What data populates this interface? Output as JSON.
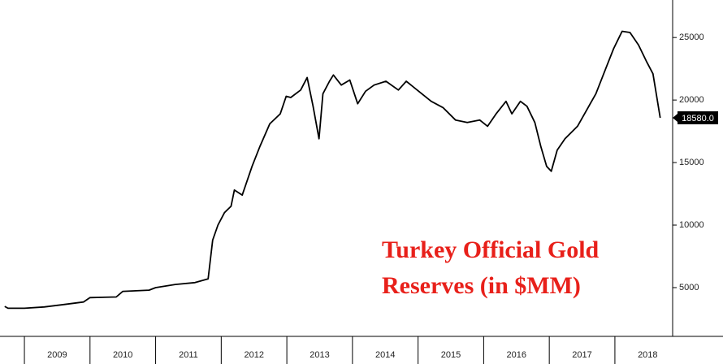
{
  "chart_data": {
    "type": "line",
    "annotation": [
      "Turkey Official Gold",
      "Reserves (in $MM)"
    ],
    "x": [
      2008.7,
      2008.75,
      2009.0,
      2009.3,
      2009.6,
      2009.9,
      2010.0,
      2010.4,
      2010.5,
      2010.9,
      2011.0,
      2011.3,
      2011.6,
      2011.8,
      2011.87,
      2011.95,
      2012.05,
      2012.15,
      2012.2,
      2012.32,
      2012.47,
      2012.59,
      2012.74,
      2012.9,
      2012.99,
      2013.06,
      2013.21,
      2013.31,
      2013.4,
      2013.49,
      2013.55,
      2013.65,
      2013.71,
      2013.83,
      2013.96,
      2014.08,
      2014.2,
      2014.33,
      2014.51,
      2014.7,
      2014.82,
      2015.01,
      2015.2,
      2015.38,
      2015.57,
      2015.75,
      2015.94,
      2016.06,
      2016.19,
      2016.34,
      2016.43,
      2016.56,
      2016.66,
      2016.78,
      2016.87,
      2016.96,
      2017.03,
      2017.12,
      2017.24,
      2017.43,
      2017.57,
      2017.71,
      2017.86,
      2017.98,
      2018.11,
      2018.23,
      2018.36,
      2018.48,
      2018.58,
      2018.64,
      2018.69
    ],
    "series": [
      {
        "color": "#000000",
        "values": [
          3500,
          3350,
          3350,
          3450,
          3650,
          3850,
          4200,
          4250,
          4700,
          4800,
          5000,
          5250,
          5400,
          5700,
          8800,
          10000,
          11000,
          11500,
          12800,
          12400,
          14700,
          16300,
          18100,
          18900,
          20300,
          20200,
          20800,
          21800,
          19500,
          16900,
          20500,
          21500,
          22000,
          21200,
          21600,
          19700,
          20700,
          21200,
          21500,
          20800,
          21500,
          20700,
          19900,
          19400,
          18400,
          18200,
          18400,
          17900,
          18900,
          19900,
          18900,
          19900,
          19500,
          18200,
          16300,
          14700,
          14300,
          16000,
          16900,
          17900,
          19200,
          20500,
          22500,
          24100,
          25500,
          25400,
          24400,
          23100,
          22100,
          20200,
          18580
        ],
        "value_labels": [
          null,
          null,
          null,
          null,
          null,
          null,
          null,
          null,
          null,
          null,
          null,
          null,
          null,
          null,
          null,
          null,
          null,
          null,
          null,
          null,
          null,
          null,
          null,
          null,
          null,
          null,
          null,
          null,
          null,
          null,
          null,
          null,
          null,
          null,
          null,
          null,
          null,
          null,
          null,
          null,
          null,
          null,
          null,
          null,
          null,
          null,
          null,
          null,
          null,
          null,
          null,
          null,
          null,
          null,
          null,
          null,
          null,
          null,
          null,
          null,
          null,
          null,
          null,
          null,
          null,
          null,
          null,
          null,
          null,
          null,
          "18580.0"
        ]
      }
    ],
    "xlim": [
      2008.69,
      2018.88
    ],
    "xticks": [
      2009,
      2010,
      2011,
      2012,
      2013,
      2014,
      2015,
      2016,
      2017,
      2018
    ],
    "ylim": [
      1100,
      28000
    ],
    "yticks": [
      5000,
      10000,
      15000,
      20000,
      25000
    ]
  }
}
